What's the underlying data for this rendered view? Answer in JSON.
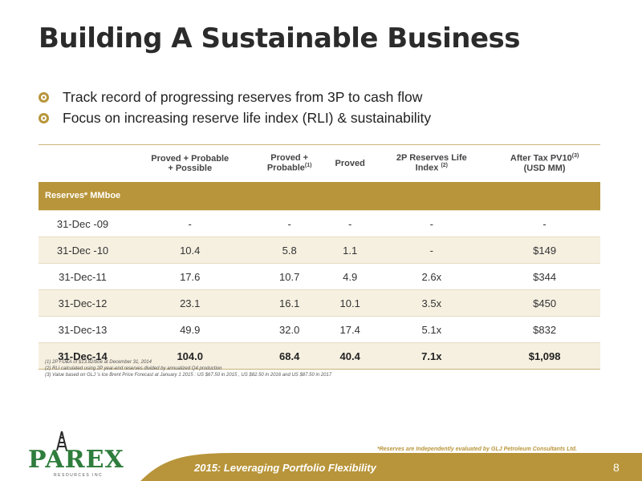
{
  "title": "Building A Sustainable Business",
  "bullets": [
    "Track record of progressing reserves from 3P to cash flow",
    "Focus on increasing reserve life index (RLI) & sustainability"
  ],
  "table": {
    "headers": [
      {
        "line1": "Proved + Probable",
        "line2": "+ Possible",
        "sup": ""
      },
      {
        "line1": "Proved +",
        "line2": "Probable",
        "sup": "(1)"
      },
      {
        "line1": "Proved",
        "line2": "",
        "sup": ""
      },
      {
        "line1": "2P Reserves Life",
        "line2": "Index ",
        "sup": "(2)"
      },
      {
        "line1": "After Tax PV10",
        "line2": "(USD MM)",
        "sup": "(3)"
      }
    ],
    "band_label": "Reserves* MMboe",
    "rows": [
      {
        "date": "31-Dec -09",
        "c1": "-",
        "c2": "-",
        "c3": "-",
        "c4": "-",
        "c5": "-"
      },
      {
        "date": "31-Dec -10",
        "c1": "10.4",
        "c2": "5.8",
        "c3": "1.1",
        "c4": "-",
        "c5": "$149"
      },
      {
        "date": "31-Dec-11",
        "c1": "17.6",
        "c2": "10.7",
        "c3": "4.9",
        "c4": "2.6x",
        "c5": "$344"
      },
      {
        "date": "31-Dec-12",
        "c1": "23.1",
        "c2": "16.1",
        "c3": "10.1",
        "c4": "3.5x",
        "c5": "$450"
      },
      {
        "date": "31-Dec-13",
        "c1": "49.9",
        "c2": "32.0",
        "c3": "17.4",
        "c4": "5.1x",
        "c5": "$832"
      },
      {
        "date": "31-Dec-14",
        "c1": "104.0",
        "c2": "68.4",
        "c3": "40.4",
        "c4": "7.1x",
        "c5": "$1,098"
      }
    ]
  },
  "footnotes": [
    "(1)   2P FD&A of $13.82/boe  at December 31, 2014",
    "(2)   RLI calculated using 2P year-end reserves divided by  annualized Q4 production",
    "(3)   Value based on GLJ 's  Ice Brent Price  Forecast  at January 1  2015 : US $67.50  in 2015 , US $82.50  in 2016  and US $87.50 in 2017"
  ],
  "disclaimer": "*Reserves are Independently evaluated by GLJ Petroleum Consultants Ltd.",
  "footer": {
    "tagline": "2015: Leveraging Portfolio Flexibility",
    "page": "8"
  },
  "logo": {
    "text": "PAREX",
    "sub": "RESOURCES INC"
  },
  "colors": {
    "gold": "#b8953a",
    "green": "#2f7d3d"
  }
}
